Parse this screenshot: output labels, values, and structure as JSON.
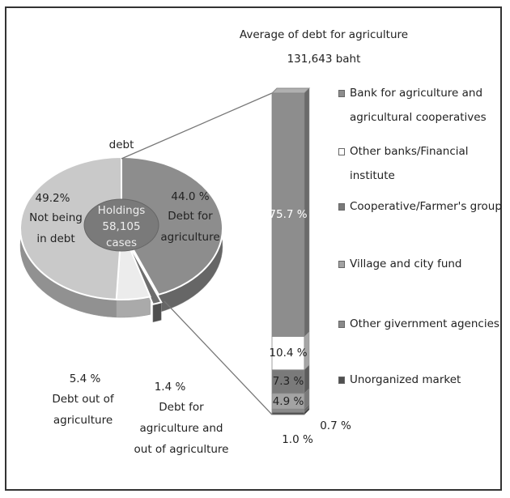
{
  "chart_data": [
    {
      "type": "pie",
      "annotation": "debt",
      "center_label": "Holdings 58,105 cases",
      "categories": [
        "Debt for agriculture",
        "Debt for agriculture and out of agriculture",
        "Debt out of agriculture",
        "Not being in debt"
      ],
      "values": [
        44.0,
        1.4,
        5.4,
        49.2
      ],
      "value_labels": [
        "44.0 %",
        "1.4 %",
        "5.4 %",
        "49.2%"
      ],
      "colors": [
        "#8d8d8d",
        "#6e6e6e",
        "#ececec",
        "#c9c9c9"
      ]
    },
    {
      "type": "bar",
      "title": "Average of debt for agriculture",
      "subtitle": "131,643 baht",
      "series": [
        {
          "name": "Bank for agriculture and agricultural cooperatives",
          "color": "#8d8d8d",
          "values": [
            75.7
          ],
          "value_labels": [
            "75.7 %"
          ]
        },
        {
          "name": "Other banks/Financial institute",
          "color": "#ffffff",
          "values": [
            10.4
          ],
          "value_labels": [
            "10.4 %"
          ]
        },
        {
          "name": "Cooperative/Farmer's group",
          "color": "#7a7a7a",
          "values": [
            7.3
          ],
          "value_labels": [
            "7.3 %"
          ]
        },
        {
          "name": "Village and city fund",
          "color": "#a3a3a3",
          "values": [
            4.9
          ],
          "value_labels": [
            "4.9 %"
          ]
        },
        {
          "name": "Other givernment agencies",
          "color": "#8a8a8a",
          "values": [
            1.0
          ],
          "value_labels": [
            "1.0 %"
          ]
        },
        {
          "name": "Unorganized market",
          "color": "#505050",
          "values": [
            0.7
          ],
          "value_labels": [
            "0.7 %"
          ]
        }
      ]
    }
  ]
}
